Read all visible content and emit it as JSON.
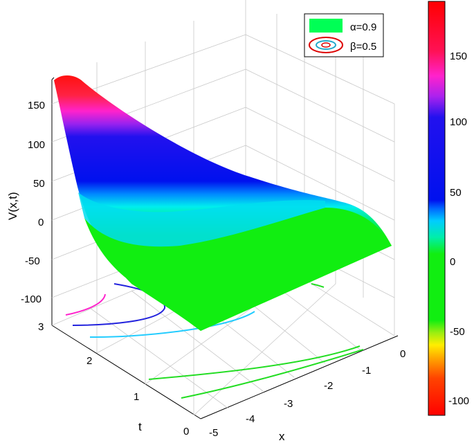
{
  "chart_data": {
    "type": "surface",
    "surface_series_name": "α=0.9",
    "contour_series_name": "β=0.5",
    "xlabel": "x",
    "ylabel": "t",
    "zlabel": "V(x,t)",
    "x_ticks": [
      "-5",
      "-4",
      "-3",
      "-2",
      "-1",
      "0"
    ],
    "t_ticks": [
      "0",
      "1",
      "2",
      "3"
    ],
    "z_ticks": [
      "-100",
      "-50",
      "0",
      "50",
      "100",
      "150"
    ],
    "x_range": [
      -5,
      0
    ],
    "t_range": [
      0,
      3
    ],
    "z_range": [
      -100,
      180
    ],
    "colorbar_ticks": [
      "-100",
      "-50",
      "0",
      "50",
      "100",
      "150"
    ],
    "colorbar_range": [
      -110,
      190
    ],
    "grid": true,
    "legend_position": "top-right",
    "legend_colors": {
      "surface": "#00ff55",
      "contour_outer": "#dd0000",
      "contour_inner": "#22aacc"
    },
    "surface_value_samples": [
      {
        "x": -5,
        "t": 3,
        "V": 185
      },
      {
        "x": -5,
        "t": 2,
        "V": 110
      },
      {
        "x": -5,
        "t": 1,
        "V": 30
      },
      {
        "x": -5,
        "t": 0,
        "V": -10
      },
      {
        "x": -2.5,
        "t": 3,
        "V": 60
      },
      {
        "x": -2.5,
        "t": 1.5,
        "V": 10
      },
      {
        "x": -2.5,
        "t": 0,
        "V": -25
      },
      {
        "x": 0,
        "t": 3,
        "V": 15
      },
      {
        "x": 0,
        "t": 1.5,
        "V": 0
      },
      {
        "x": 0,
        "t": 0,
        "V": -45
      }
    ]
  }
}
